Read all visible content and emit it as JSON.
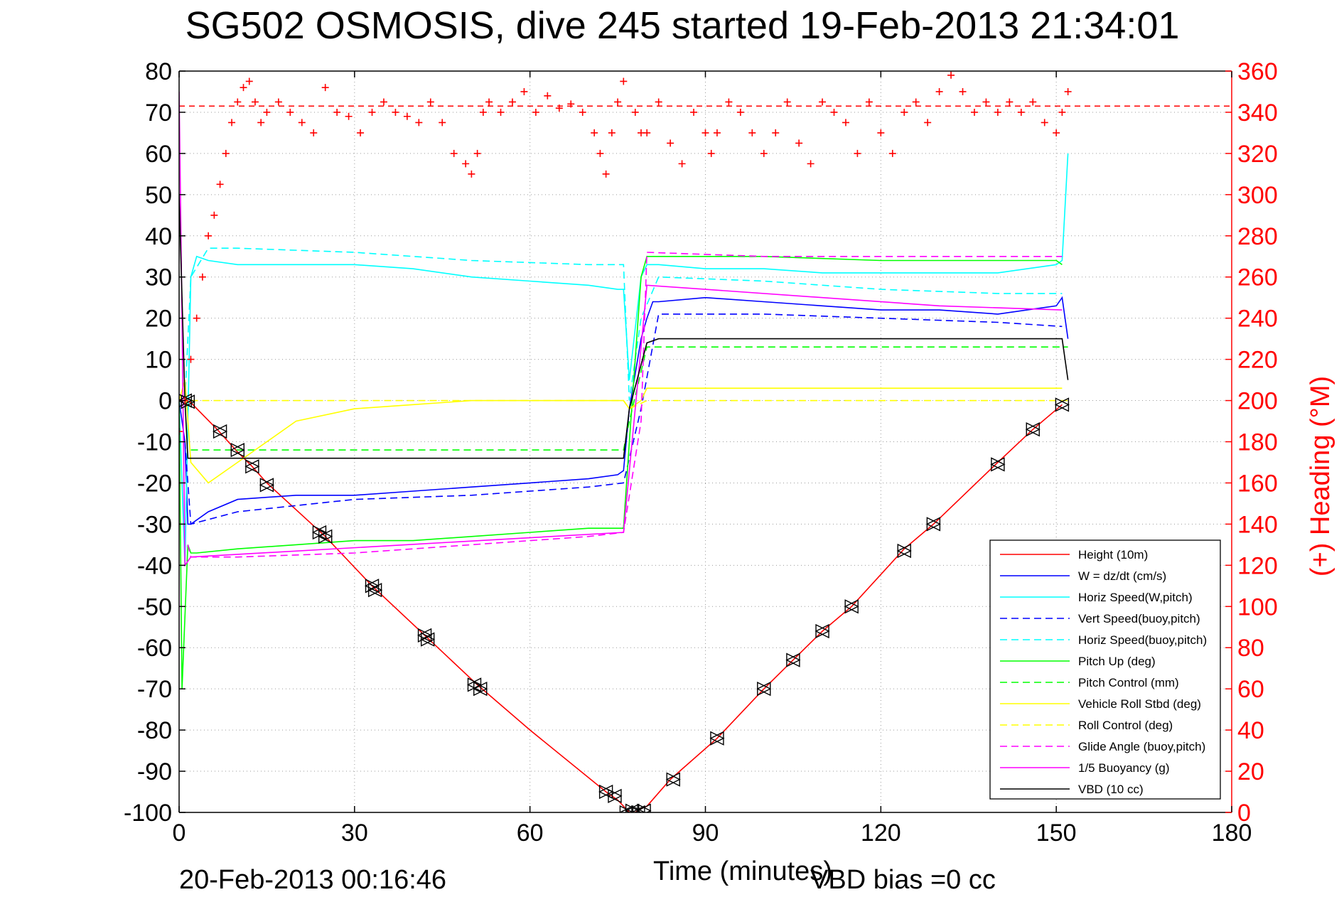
{
  "figure": {
    "footer_date": "20-Feb-2013 00:16:46",
    "vbd_bias": "VBD bias =0 cc"
  },
  "colors": {
    "height": "#ff0000",
    "w": "#0000ff",
    "horiz": "#00ffff",
    "pitch": "#00ff00",
    "roll": "#ffff00",
    "glide": "#ff00ff",
    "vbd": "#000000",
    "heading": "#ff0000"
  },
  "chart_data": {
    "type": "line",
    "title": "SG502 OSMOSIS, dive 245 started 19-Feb-2013 21:34:01",
    "xlabel": "Time (minutes)",
    "ylabel_right": "(+) Heading (°M)",
    "xlim": [
      0,
      180
    ],
    "ylim": [
      -100,
      80
    ],
    "ylim_right": [
      0,
      360
    ],
    "xticks": [
      "0",
      "30",
      "60",
      "90",
      "120",
      "150",
      "180"
    ],
    "yticks": [
      "80",
      "70",
      "60",
      "50",
      "40",
      "30",
      "20",
      "10",
      "0",
      "-10",
      "-20",
      "-30",
      "-40",
      "-50",
      "-60",
      "-70",
      "-80",
      "-90",
      "-100"
    ],
    "yticks_right": [
      "360",
      "340",
      "320",
      "300",
      "280",
      "260",
      "240",
      "220",
      "200",
      "180",
      "160",
      "140",
      "120",
      "100",
      "80",
      "60",
      "40",
      "20",
      "0"
    ],
    "grid": true,
    "legend_position": "bottom-right",
    "heading_reference": 343,
    "series": [
      {
        "name": "Height (10m)",
        "style": "solid",
        "color": "#ff0000",
        "x": [
          0,
          1,
          2,
          6.5,
          10,
          12.5,
          15,
          25,
          33,
          42,
          51,
          60,
          73,
          75,
          77,
          78,
          79,
          80,
          84,
          92,
          100,
          105,
          110,
          115,
          124,
          129,
          140,
          146,
          151
        ],
        "y": [
          0,
          0,
          -0.5,
          -7,
          -12.5,
          -16,
          -20,
          -33,
          -45,
          -57,
          -69,
          -80,
          -95,
          -97,
          -100,
          -100,
          -99,
          -98.5,
          -92,
          -82,
          -70,
          -63,
          -56,
          -50,
          -36,
          -30,
          -15,
          -7,
          -1
        ]
      },
      {
        "name": "W = dz/dt (cm/s)",
        "style": "solid",
        "color": "#0000ff",
        "x": [
          0,
          1,
          1.5,
          2,
          5,
          10,
          20,
          30,
          40,
          50,
          60,
          70,
          75,
          76,
          77,
          79,
          80,
          81,
          82,
          90,
          100,
          110,
          120,
          130,
          140,
          145,
          150,
          151,
          152
        ],
        "y": [
          0,
          -10,
          -30,
          -30,
          -27,
          -24,
          -23,
          -23,
          -22,
          -21,
          -20,
          -19,
          -18,
          -17,
          -2,
          15,
          20,
          24,
          24,
          25,
          24,
          23,
          22,
          22,
          21,
          22,
          23,
          25,
          15
        ]
      },
      {
        "name": "Horiz Speed(W,pitch)",
        "style": "solid",
        "color": "#00ffff",
        "x": [
          0,
          1,
          2,
          3,
          5,
          10,
          20,
          30,
          40,
          50,
          60,
          70,
          75,
          76,
          77,
          79,
          80,
          82,
          90,
          100,
          110,
          120,
          130,
          140,
          150,
          151,
          152
        ],
        "y": [
          0,
          -40,
          30,
          35,
          34,
          33,
          33,
          33,
          32,
          30,
          29,
          28,
          27,
          27,
          5,
          30,
          33,
          33,
          32,
          32,
          31,
          31,
          31,
          31,
          33,
          34,
          60
        ]
      },
      {
        "name": "Vert Speed(buoy,pitch)",
        "style": "dashed",
        "color": "#0000ff",
        "x": [
          1,
          2,
          10,
          30,
          50,
          70,
          76,
          79,
          82,
          100,
          120,
          140,
          151
        ],
        "y": [
          -10,
          -30,
          -27,
          -24,
          -23,
          -21,
          -20,
          -2,
          21,
          21,
          20,
          19,
          18
        ]
      },
      {
        "name": "Horiz Speed(buoy,pitch)",
        "style": "dashed",
        "color": "#00ffff",
        "x": [
          1,
          2,
          5,
          10,
          30,
          50,
          70,
          76,
          77,
          79,
          82,
          100,
          120,
          140,
          151
        ],
        "y": [
          0,
          30,
          37,
          37,
          36,
          34,
          33,
          33,
          0,
          20,
          30,
          29,
          27,
          26,
          26
        ]
      },
      {
        "name": "Pitch Up (deg)",
        "style": "solid",
        "color": "#00ff00",
        "x": [
          0,
          0.5,
          1.5,
          2,
          3,
          10,
          20,
          30,
          40,
          50,
          60,
          70,
          76,
          77,
          79,
          80,
          82,
          100,
          120,
          140,
          150,
          151
        ],
        "y": [
          0,
          -70,
          -35,
          -37,
          -37,
          -36,
          -35,
          -34,
          -34,
          -33,
          -32,
          -31,
          -31,
          -10,
          30,
          35,
          35,
          35,
          34,
          34,
          34,
          33
        ]
      },
      {
        "name": "Pitch Control (mm)",
        "style": "dashed",
        "color": "#00ff00",
        "x": [
          2,
          76,
          77,
          80,
          152
        ],
        "y": [
          -12,
          -12,
          -5,
          13,
          13
        ]
      },
      {
        "name": "Vehicle Roll Stbd (deg)",
        "style": "solid",
        "color": "#ffff00",
        "x": [
          0,
          1,
          2,
          5,
          10,
          20,
          30,
          40,
          50,
          60,
          70,
          76,
          77,
          79,
          80,
          90,
          100,
          110,
          120,
          130,
          140,
          150,
          151
        ],
        "y": [
          0,
          5,
          -15,
          -20,
          -15,
          -5,
          -2,
          -1,
          0,
          0,
          0,
          0,
          -2,
          0,
          3,
          3,
          3,
          3,
          3,
          3,
          3,
          3,
          3
        ]
      },
      {
        "name": "Roll Control (deg)",
        "style": "dashed",
        "color": "#ffff00",
        "x": [
          2,
          76,
          77,
          80,
          152
        ],
        "y": [
          0,
          0,
          -2,
          0,
          0
        ]
      },
      {
        "name": "Glide Angle (buoy,pitch)",
        "style": "dashed",
        "color": "#ff00ff",
        "x": [
          1.5,
          2,
          10,
          30,
          50,
          70,
          76,
          79,
          80,
          100,
          120,
          140,
          151
        ],
        "y": [
          -35,
          -38,
          -38,
          -37,
          -35,
          -33,
          -32,
          -5,
          36,
          35,
          35,
          35,
          35
        ]
      },
      {
        "name": "1/5 Buoyancy (g)",
        "style": "solid",
        "color": "#ff00ff",
        "x": [
          0,
          0.5,
          1,
          2,
          76,
          80,
          90,
          110,
          130,
          151
        ],
        "y": [
          75,
          20,
          -40,
          -38,
          -32,
          28,
          27,
          25,
          23,
          22
        ]
      },
      {
        "name": "VBD (10 cc)",
        "style": "solid",
        "color": "#000000",
        "x": [
          0,
          1,
          1.5,
          2,
          76,
          77,
          80,
          82,
          151,
          152
        ],
        "y": [
          50,
          0,
          -14,
          -14,
          -14,
          -2,
          14,
          15,
          15,
          5
        ]
      }
    ],
    "heading": {
      "name": "(+) Heading",
      "marker": "+",
      "color": "#ff0000",
      "x": [
        0,
        1,
        2,
        3,
        4,
        5,
        6,
        7,
        8,
        9,
        10,
        11,
        12,
        13,
        14,
        15,
        17,
        19,
        21,
        23,
        25,
        27,
        29,
        31,
        33,
        35,
        37,
        39,
        41,
        43,
        45,
        47,
        49,
        50,
        51,
        52,
        53,
        55,
        57,
        59,
        61,
        63,
        65,
        67,
        69,
        71,
        72,
        73,
        74,
        75,
        76,
        77,
        78,
        79,
        80,
        82,
        84,
        86,
        88,
        90,
        91,
        92,
        94,
        96,
        98,
        100,
        102,
        104,
        106,
        108,
        110,
        112,
        114,
        116,
        118,
        120,
        122,
        124,
        126,
        128,
        130,
        132,
        134,
        136,
        138,
        140,
        142,
        144,
        146,
        148,
        150,
        151,
        152
      ],
      "y": [
        185,
        200,
        220,
        240,
        260,
        280,
        290,
        305,
        320,
        335,
        345,
        352,
        355,
        345,
        335,
        340,
        345,
        340,
        335,
        330,
        352,
        340,
        338,
        330,
        340,
        345,
        340,
        338,
        335,
        345,
        335,
        320,
        315,
        310,
        320,
        340,
        345,
        340,
        345,
        350,
        340,
        348,
        342,
        344,
        340,
        330,
        320,
        310,
        330,
        345,
        355,
        370,
        340,
        330,
        330,
        345,
        325,
        315,
        340,
        330,
        320,
        330,
        345,
        340,
        330,
        320,
        330,
        345,
        325,
        315,
        345,
        340,
        335,
        320,
        345,
        330,
        320,
        340,
        345,
        335,
        350,
        358,
        350,
        340,
        345,
        340,
        345,
        340,
        345,
        335,
        330,
        340,
        350
      ]
    },
    "dive_markers": {
      "x": [
        1,
        1.5,
        7,
        10,
        12.5,
        15,
        24,
        25,
        33,
        33.5,
        42,
        42.5,
        50.5,
        51.5,
        73,
        74.5,
        76.5,
        77.5,
        78.5,
        79.5,
        84.5,
        92,
        100,
        105,
        110,
        115,
        124,
        129,
        140,
        146,
        151
      ],
      "y": [
        0,
        -0.3,
        -7.5,
        -12,
        -16,
        -20.5,
        -32,
        -33,
        -45,
        -46,
        -57,
        -58,
        -69,
        -70,
        -95,
        -96,
        -100,
        -99.6,
        -100,
        -99.6,
        -92,
        -82,
        -70,
        -63,
        -56,
        -50,
        -36.5,
        -30,
        -15.5,
        -7,
        -1
      ]
    }
  }
}
